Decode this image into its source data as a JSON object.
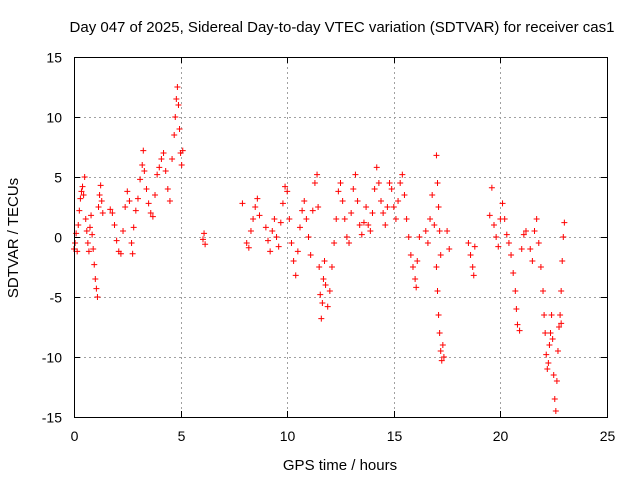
{
  "chart_data": {
    "type": "scatter",
    "title": "Day 047 of 2025, Sidereal Day-to-day VTEC variation (SDTVAR) for receiver cas1",
    "xlabel": "GPS time / hours",
    "ylabel": "SDTVAR / TECUs",
    "xlim": [
      0,
      25
    ],
    "ylim": [
      -15,
      15
    ],
    "xticks": [
      0,
      5,
      10,
      15,
      20,
      25
    ],
    "yticks": [
      -15,
      -10,
      -5,
      0,
      5,
      10,
      15
    ],
    "xtick_labels": [
      "0",
      "5",
      "10",
      "15",
      "20",
      "25"
    ],
    "ytick_labels": [
      "-15",
      "-10",
      "-5",
      "0",
      "5",
      "10",
      "15"
    ],
    "grid": true,
    "marker": "plus",
    "marker_color": "#ff0000",
    "series": [
      {
        "name": "SDTVAR",
        "points": [
          [
            0.0,
            -1.0
          ],
          [
            0.05,
            -0.5
          ],
          [
            0.1,
            0.3
          ],
          [
            0.15,
            -1.2
          ],
          [
            0.2,
            1.0
          ],
          [
            0.25,
            2.2
          ],
          [
            0.3,
            3.2
          ],
          [
            0.35,
            3.8
          ],
          [
            0.4,
            4.2
          ],
          [
            0.45,
            3.5
          ],
          [
            0.5,
            5.0
          ],
          [
            0.55,
            1.5
          ],
          [
            0.6,
            0.5
          ],
          [
            0.65,
            -0.5
          ],
          [
            0.7,
            -1.2
          ],
          [
            0.75,
            0.8
          ],
          [
            0.8,
            1.8
          ],
          [
            0.85,
            0.2
          ],
          [
            0.9,
            -1.0
          ],
          [
            0.95,
            -2.3
          ],
          [
            1.0,
            -3.5
          ],
          [
            1.05,
            -4.3
          ],
          [
            1.1,
            -5.0
          ],
          [
            1.15,
            2.5
          ],
          [
            1.2,
            3.5
          ],
          [
            1.25,
            4.3
          ],
          [
            1.3,
            3.0
          ],
          [
            1.35,
            2.0
          ],
          [
            1.7,
            2.3
          ],
          [
            1.8,
            2.0
          ],
          [
            1.9,
            1.0
          ],
          [
            2.0,
            -0.3
          ],
          [
            2.1,
            -1.2
          ],
          [
            2.2,
            -1.4
          ],
          [
            2.3,
            0.5
          ],
          [
            2.4,
            2.5
          ],
          [
            2.5,
            3.8
          ],
          [
            2.6,
            3.0
          ],
          [
            2.7,
            -0.5
          ],
          [
            2.75,
            -1.4
          ],
          [
            2.8,
            0.8
          ],
          [
            2.9,
            2.2
          ],
          [
            3.0,
            3.2
          ],
          [
            3.1,
            4.8
          ],
          [
            3.2,
            6.0
          ],
          [
            3.25,
            7.2
          ],
          [
            3.3,
            5.5
          ],
          [
            3.4,
            4.0
          ],
          [
            3.5,
            2.8
          ],
          [
            3.6,
            2.0
          ],
          [
            3.7,
            1.7
          ],
          [
            3.8,
            3.5
          ],
          [
            3.9,
            5.2
          ],
          [
            4.0,
            5.8
          ],
          [
            4.1,
            6.5
          ],
          [
            4.2,
            7.0
          ],
          [
            4.3,
            5.5
          ],
          [
            4.4,
            4.0
          ],
          [
            4.5,
            3.0
          ],
          [
            4.6,
            6.5
          ],
          [
            4.7,
            8.5
          ],
          [
            4.75,
            10.0
          ],
          [
            4.8,
            11.5
          ],
          [
            4.85,
            12.5
          ],
          [
            4.9,
            11.0
          ],
          [
            4.95,
            9.0
          ],
          [
            5.0,
            7.0
          ],
          [
            5.05,
            6.0
          ],
          [
            5.1,
            7.2
          ],
          [
            6.05,
            -0.2
          ],
          [
            6.1,
            0.3
          ],
          [
            6.15,
            -0.6
          ],
          [
            7.9,
            2.8
          ],
          [
            8.1,
            -0.5
          ],
          [
            8.2,
            -0.9
          ],
          [
            8.3,
            0.5
          ],
          [
            8.4,
            1.5
          ],
          [
            8.5,
            2.5
          ],
          [
            8.6,
            3.2
          ],
          [
            8.7,
            1.8
          ],
          [
            9.0,
            0.8
          ],
          [
            9.1,
            -0.3
          ],
          [
            9.2,
            -1.2
          ],
          [
            9.3,
            0.5
          ],
          [
            9.4,
            1.5
          ],
          [
            9.5,
            0.0
          ],
          [
            9.6,
            -0.8
          ],
          [
            9.7,
            1.2
          ],
          [
            9.8,
            2.8
          ],
          [
            9.9,
            4.2
          ],
          [
            10.0,
            3.8
          ],
          [
            10.1,
            1.5
          ],
          [
            10.2,
            -0.5
          ],
          [
            10.3,
            -2.0
          ],
          [
            10.4,
            -3.2
          ],
          [
            10.5,
            -1.2
          ],
          [
            10.6,
            0.8
          ],
          [
            10.7,
            2.2
          ],
          [
            10.8,
            3.0
          ],
          [
            10.9,
            1.5
          ],
          [
            11.0,
            0.0
          ],
          [
            11.1,
            -1.5
          ],
          [
            11.2,
            2.2
          ],
          [
            11.3,
            4.5
          ],
          [
            11.4,
            5.2
          ],
          [
            11.45,
            2.5
          ],
          [
            11.5,
            -2.5
          ],
          [
            11.55,
            -4.8
          ],
          [
            11.6,
            -6.8
          ],
          [
            11.65,
            -5.5
          ],
          [
            11.7,
            -3.5
          ],
          [
            11.75,
            -2.0
          ],
          [
            11.8,
            -4.0
          ],
          [
            11.9,
            -5.8
          ],
          [
            12.0,
            -4.5
          ],
          [
            12.1,
            -2.5
          ],
          [
            12.2,
            -0.5
          ],
          [
            12.3,
            1.5
          ],
          [
            12.4,
            3.8
          ],
          [
            12.5,
            4.5
          ],
          [
            12.6,
            3.0
          ],
          [
            12.7,
            1.5
          ],
          [
            12.8,
            0.0
          ],
          [
            12.9,
            -0.5
          ],
          [
            13.0,
            2.0
          ],
          [
            13.1,
            4.0
          ],
          [
            13.2,
            5.2
          ],
          [
            13.3,
            3.0
          ],
          [
            13.4,
            1.0
          ],
          [
            13.5,
            0.2
          ],
          [
            13.6,
            1.2
          ],
          [
            13.7,
            2.5
          ],
          [
            13.8,
            1.0
          ],
          [
            13.9,
            0.5
          ],
          [
            14.0,
            2.0
          ],
          [
            14.1,
            4.0
          ],
          [
            14.2,
            5.8
          ],
          [
            14.3,
            4.5
          ],
          [
            14.4,
            3.0
          ],
          [
            14.5,
            2.0
          ],
          [
            14.6,
            1.0
          ],
          [
            14.7,
            2.5
          ],
          [
            14.8,
            4.5
          ],
          [
            14.9,
            4.0
          ],
          [
            15.0,
            2.5
          ],
          [
            15.1,
            1.5
          ],
          [
            15.2,
            3.0
          ],
          [
            15.3,
            4.5
          ],
          [
            15.4,
            5.2
          ],
          [
            15.5,
            3.5
          ],
          [
            15.6,
            1.5
          ],
          [
            15.7,
            0.0
          ],
          [
            15.8,
            -1.5
          ],
          [
            15.9,
            -2.5
          ],
          [
            16.0,
            -3.5
          ],
          [
            16.05,
            -4.2
          ],
          [
            16.1,
            -2.0
          ],
          [
            16.2,
            0.0
          ],
          [
            16.5,
            0.5
          ],
          [
            16.6,
            -0.5
          ],
          [
            16.7,
            1.5
          ],
          [
            16.8,
            3.5
          ],
          [
            16.9,
            1.0
          ],
          [
            17.0,
            -2.5
          ],
          [
            17.05,
            -4.5
          ],
          [
            17.1,
            -6.5
          ],
          [
            17.15,
            -8.0
          ],
          [
            17.2,
            -9.5
          ],
          [
            17.25,
            -10.3
          ],
          [
            17.3,
            -9.0
          ],
          [
            17.0,
            6.8
          ],
          [
            17.05,
            4.5
          ],
          [
            17.1,
            2.5
          ],
          [
            17.15,
            0.5
          ],
          [
            17.2,
            -1.5
          ],
          [
            17.35,
            -10.0
          ],
          [
            17.5,
            0.5
          ],
          [
            17.6,
            -1.0
          ],
          [
            18.5,
            -0.5
          ],
          [
            18.6,
            -1.5
          ],
          [
            18.7,
            -2.5
          ],
          [
            18.75,
            -3.2
          ],
          [
            18.8,
            -0.8
          ],
          [
            19.6,
            4.1
          ],
          [
            19.5,
            1.8
          ],
          [
            19.7,
            1.0
          ],
          [
            19.8,
            0.0
          ],
          [
            19.9,
            -0.8
          ],
          [
            20.0,
            1.5
          ],
          [
            20.1,
            2.8
          ],
          [
            20.2,
            1.5
          ],
          [
            20.3,
            0.2
          ],
          [
            20.4,
            -0.5
          ],
          [
            20.5,
            -1.5
          ],
          [
            20.6,
            -3.0
          ],
          [
            20.7,
            -4.5
          ],
          [
            20.75,
            -6.0
          ],
          [
            20.8,
            -7.3
          ],
          [
            20.9,
            -7.8
          ],
          [
            21.0,
            -1.0
          ],
          [
            21.1,
            0.2
          ],
          [
            21.2,
            0.5
          ],
          [
            21.4,
            -1.0
          ],
          [
            21.5,
            -2.0
          ],
          [
            21.6,
            0.5
          ],
          [
            21.7,
            1.5
          ],
          [
            21.8,
            -0.5
          ],
          [
            21.9,
            -2.5
          ],
          [
            22.0,
            -4.5
          ],
          [
            22.05,
            -6.5
          ],
          [
            22.1,
            -8.0
          ],
          [
            22.15,
            -9.8
          ],
          [
            22.2,
            -11.0
          ],
          [
            22.25,
            -10.5
          ],
          [
            22.3,
            -9.0
          ],
          [
            22.35,
            -8.0
          ],
          [
            22.4,
            -6.5
          ],
          [
            22.45,
            -8.5
          ],
          [
            22.5,
            -11.5
          ],
          [
            22.55,
            -13.5
          ],
          [
            22.6,
            -14.5
          ],
          [
            22.65,
            -12.0
          ],
          [
            22.7,
            -9.5
          ],
          [
            22.75,
            -7.5
          ],
          [
            22.8,
            -6.5
          ],
          [
            22.85,
            -4.5
          ],
          [
            22.9,
            -2.0
          ],
          [
            22.95,
            0.0
          ],
          [
            23.0,
            1.2
          ],
          [
            22.85,
            -7.2
          ]
        ]
      }
    ]
  }
}
